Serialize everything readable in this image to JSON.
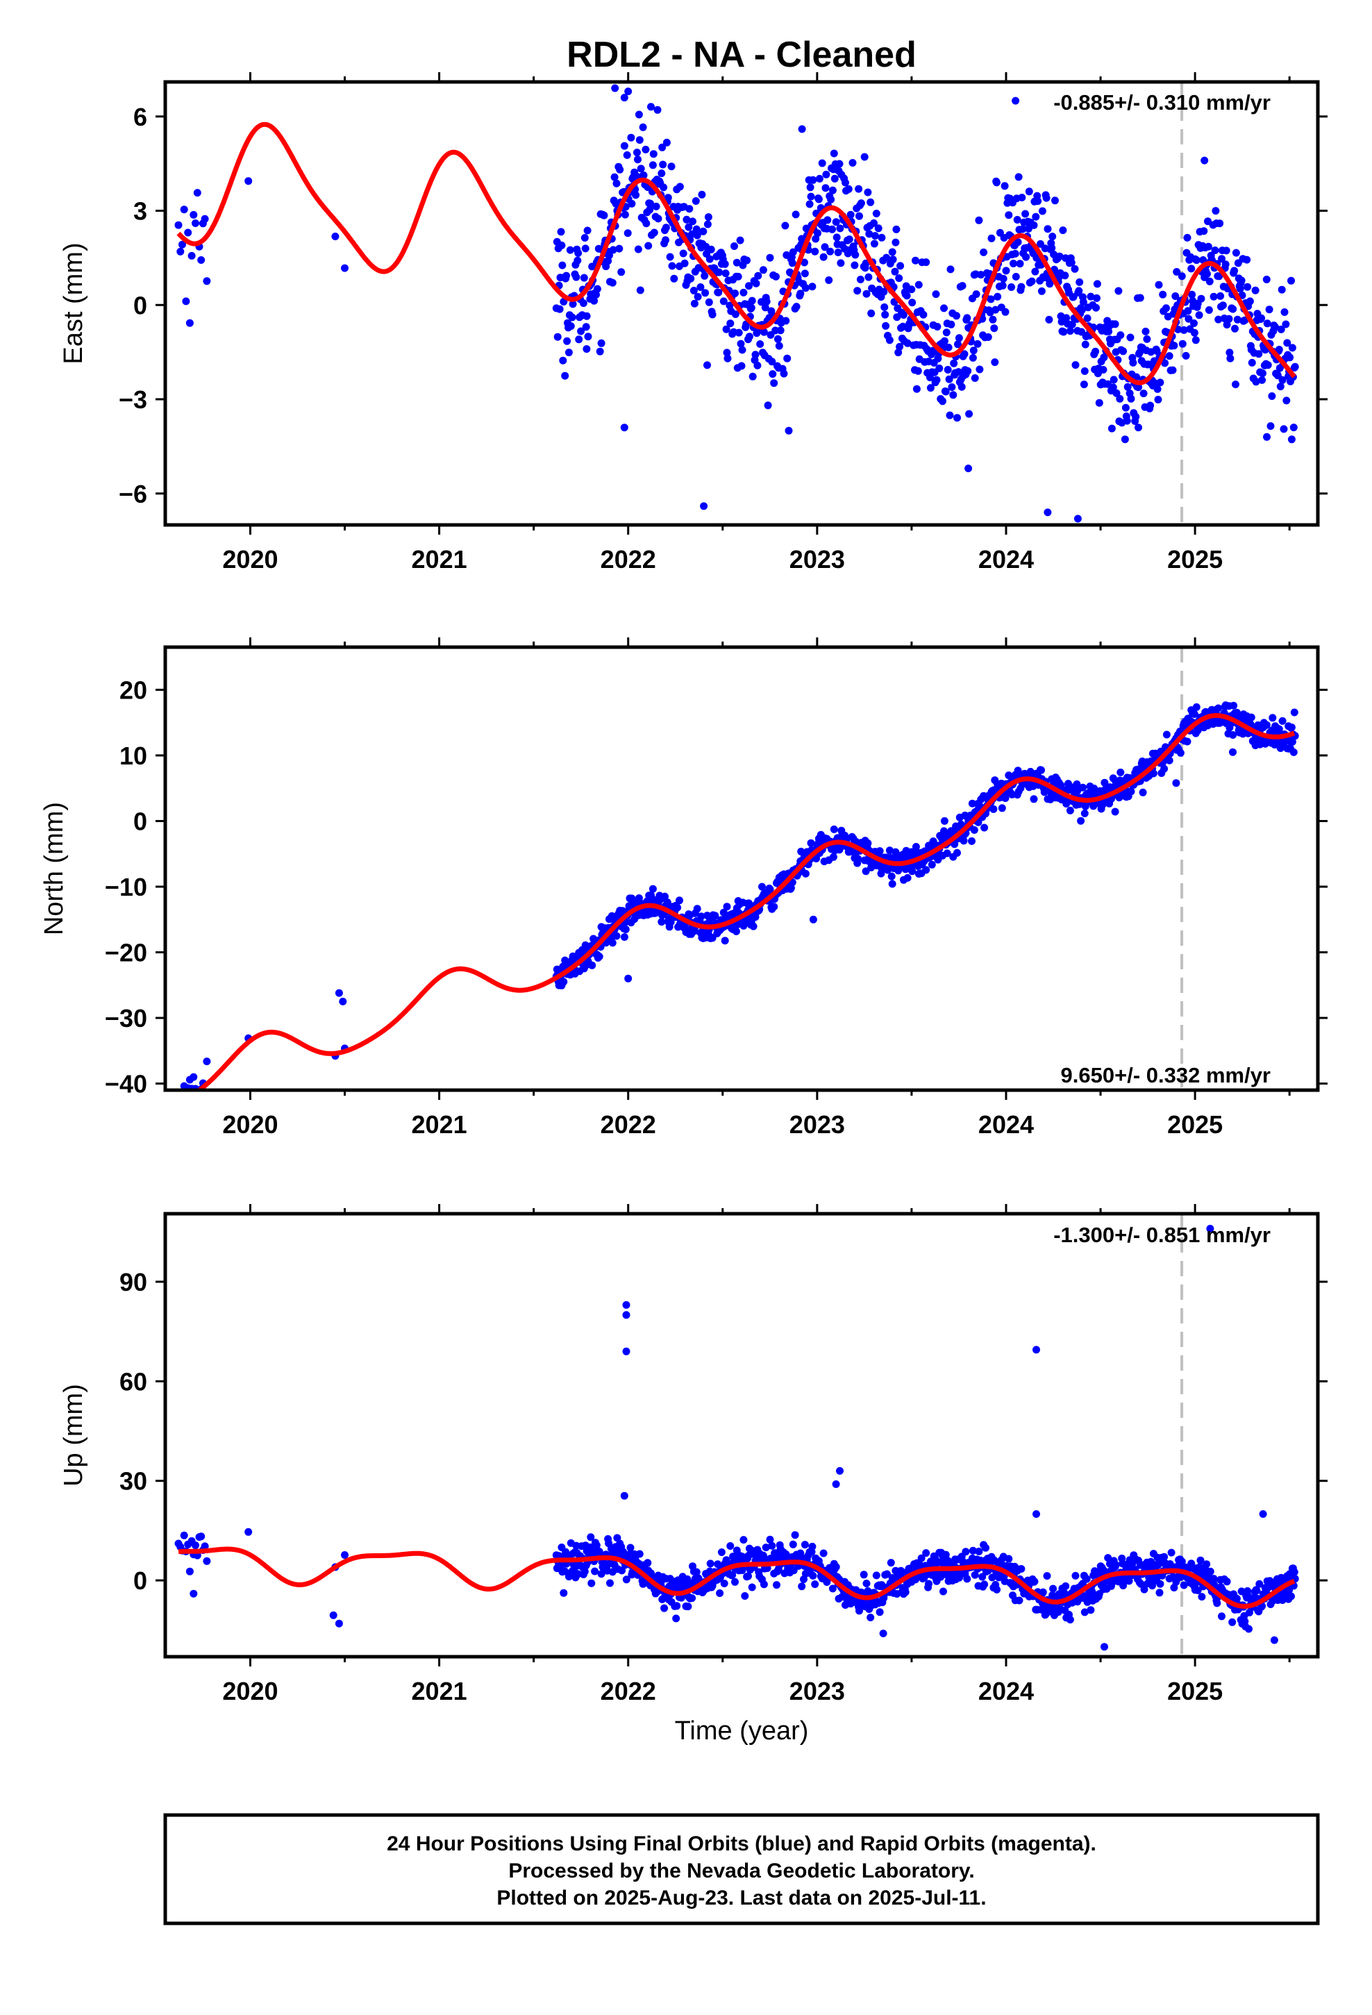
{
  "figure": {
    "title": "RDL2  - NA - Cleaned",
    "xlabel": "Time (year)",
    "colors": {
      "data": "#0000ff",
      "model": "#ff0000",
      "marker": "#c0c0c0",
      "frame": "#000000"
    },
    "footer": [
      "24 Hour Positions Using Final Orbits (blue) and Rapid Orbits (magenta).",
      "Processed by the Nevada Geodetic Laboratory.",
      "Plotted on 2025-Aug-23. Last data on 2025-Jul-11."
    ]
  },
  "chart_data": [
    {
      "type": "scatter",
      "ylabel": "East (mm)",
      "rate_label": "-0.885+/- 0.310 mm/yr",
      "xlim": [
        2019.55,
        2025.65
      ],
      "ylim": [
        -7,
        7.1
      ],
      "xticks": [
        2020,
        2021,
        2022,
        2023,
        2024,
        2025
      ],
      "yticks": [
        -6,
        -3,
        0,
        3,
        6
      ],
      "yticklabels": [
        "−6",
        "−3",
        "0",
        "3",
        "6"
      ],
      "marker_epoch": 2024.93,
      "series": [
        {
          "role": "final orbits (blue)",
          "model": {
            "a0": 1.35,
            "rate": -0.885,
            "t0": 2022.6,
            "a1": 1.9,
            "p1": 0.75,
            "a2": 0.45,
            "p2": 1.2
          },
          "noise": 1.0,
          "sparse_noise": 1.2,
          "gaps": [
            [
              2019.7,
              2019.85
            ],
            [
              2019.98,
              2020.0
            ],
            [
              2020.42,
              2020.53
            ],
            [
              2021.62,
              2025.53
            ]
          ],
          "outliers": [
            [
              2021.93,
              6.9
            ],
            [
              2021.98,
              6.6
            ],
            [
              2022.0,
              6.8
            ],
            [
              2021.98,
              -3.9
            ],
            [
              2022.4,
              -6.4
            ],
            [
              2024.22,
              -6.6
            ],
            [
              2024.38,
              -6.8
            ],
            [
              2023.95,
              3.9
            ],
            [
              2022.92,
              5.6
            ],
            [
              2024.05,
              6.5
            ],
            [
              2021.78,
              -1.4
            ],
            [
              2022.85,
              -4.0
            ],
            [
              2023.8,
              -5.2
            ],
            [
              2024.7,
              -3.9
            ],
            [
              2025.05,
              4.6
            ],
            [
              2025.38,
              -4.2
            ]
          ]
        }
      ]
    },
    {
      "type": "scatter",
      "ylabel": "North (mm)",
      "rate_label": "9.650+/- 0.332 mm/yr",
      "xlim": [
        2019.55,
        2025.65
      ],
      "ylim": [
        -41,
        26.5
      ],
      "xticks": [
        2020,
        2021,
        2022,
        2023,
        2024,
        2025
      ],
      "yticks": [
        -40,
        -30,
        -20,
        -10,
        0,
        10,
        20
      ],
      "yticklabels": [
        "−40",
        "−30",
        "−20",
        "−10",
        "0",
        "10",
        "20"
      ],
      "marker_epoch": 2024.93,
      "series": [
        {
          "role": "final orbits (blue)",
          "model": {
            "a0": -11.8,
            "rate": 9.65,
            "t0": 2022.6,
            "a1": 3.4,
            "p1": 1.25,
            "a2": 0.5,
            "p2": 0.4
          },
          "noise": 1.1,
          "sparse_noise": 1.2,
          "gaps": [
            [
              2019.7,
              2019.85
            ],
            [
              2019.98,
              2020.0
            ],
            [
              2020.42,
              2020.53
            ],
            [
              2021.62,
              2025.53
            ]
          ],
          "outliers": [
            [
              2020.47,
              -26.2
            ],
            [
              2020.49,
              -27.5
            ],
            [
              2019.7,
              -39.0
            ],
            [
              2022.0,
              -24.0
            ],
            [
              2022.98,
              -15.0
            ],
            [
              2024.9,
              5.8
            ],
            [
              2025.2,
              10.5
            ]
          ]
        }
      ]
    },
    {
      "type": "scatter",
      "ylabel": "Up (mm)",
      "rate_label": "-1.300+/- 0.851 mm/yr",
      "xlim": [
        2019.55,
        2025.65
      ],
      "ylim": [
        -23,
        110.5
      ],
      "xticks": [
        2020,
        2021,
        2022,
        2023,
        2024,
        2025
      ],
      "yticks": [
        0,
        30,
        60,
        90
      ],
      "yticklabels": [
        "0",
        "30",
        "60",
        "90"
      ],
      "marker_epoch": 2024.93,
      "series": [
        {
          "role": "final orbits (blue)",
          "model": {
            "a0": 2.0,
            "rate": -1.3,
            "t0": 2022.6,
            "a1": 4.8,
            "p1": 3.0,
            "a2": 1.6,
            "p2": 1.6
          },
          "noise": 2.8,
          "sparse_noise": 3.0,
          "gaps": [
            [
              2019.7,
              2019.85
            ],
            [
              2019.98,
              2020.0
            ],
            [
              2020.42,
              2020.53
            ],
            [
              2021.62,
              2025.53
            ]
          ],
          "outliers": [
            [
              2021.99,
              83
            ],
            [
              2021.99,
              80
            ],
            [
              2021.99,
              69
            ],
            [
              2021.98,
              25.5
            ],
            [
              2023.12,
              33
            ],
            [
              2023.1,
              29
            ],
            [
              2024.16,
              69.5
            ],
            [
              2024.16,
              20
            ],
            [
              2025.08,
              106
            ],
            [
              2025.36,
              20
            ],
            [
              2020.44,
              -10.5
            ],
            [
              2020.47,
              -13
            ],
            [
              2019.7,
              -4
            ],
            [
              2024.52,
              -20
            ],
            [
              2023.35,
              -16
            ],
            [
              2025.42,
              -18
            ]
          ]
        }
      ]
    }
  ]
}
